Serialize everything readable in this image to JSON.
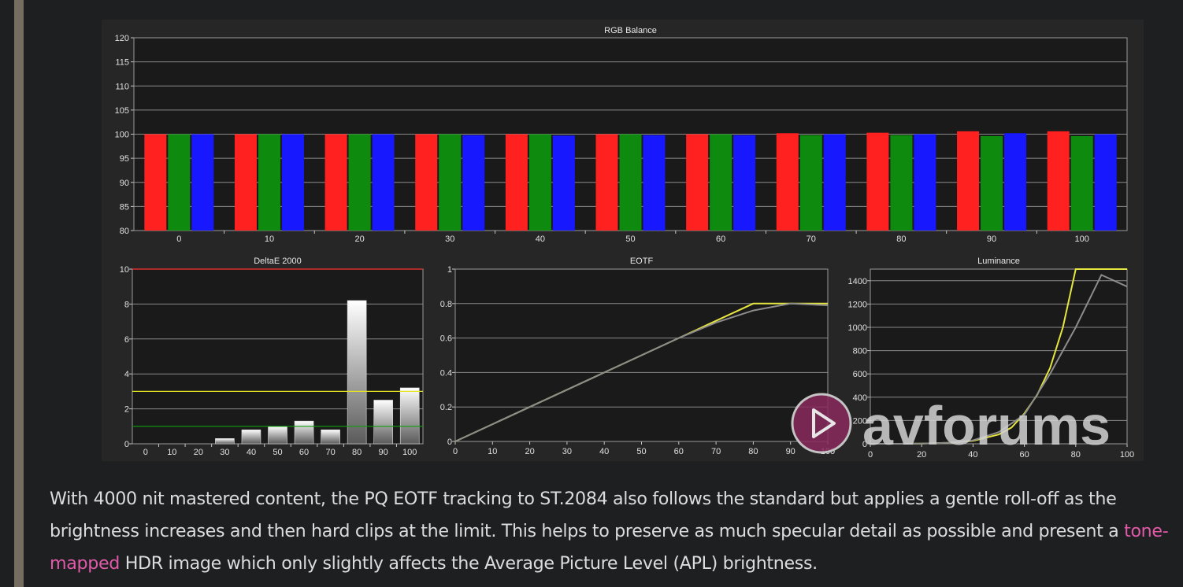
{
  "chart_data": [
    {
      "type": "bar",
      "title": "RGB Balance",
      "categories": [
        "0",
        "10",
        "20",
        "30",
        "40",
        "50",
        "60",
        "70",
        "80",
        "90",
        "100"
      ],
      "series": [
        {
          "values": [
            100,
            100,
            100,
            100,
            100,
            100,
            100,
            100.2,
            100.3,
            100.6,
            100.6
          ]
        },
        {
          "values": [
            100,
            100,
            100,
            100,
            100,
            100,
            100,
            99.8,
            99.8,
            99.6,
            99.6
          ]
        },
        {
          "values": [
            100,
            100,
            100,
            99.8,
            99.7,
            99.8,
            99.8,
            100,
            100,
            100.2,
            100
          ]
        }
      ],
      "colors": [
        "#ff2020",
        "#0e8a0e",
        "#1818ff"
      ],
      "ylim": [
        80,
        120
      ],
      "yticks": [
        80,
        85,
        90,
        95,
        100,
        105,
        110,
        115,
        120
      ],
      "grid": true
    },
    {
      "type": "bar",
      "title": "DeltaE 2000",
      "categories": [
        "0",
        "10",
        "20",
        "30",
        "40",
        "50",
        "60",
        "70",
        "80",
        "90",
        "100"
      ],
      "values": [
        0,
        0,
        0,
        0.3,
        0.8,
        1.0,
        1.3,
        0.8,
        8.2,
        2.5,
        3.2
      ],
      "ylim": [
        0,
        10
      ],
      "yticks": [
        0,
        2,
        4,
        6,
        8,
        10
      ],
      "reference_lines": [
        {
          "y": 10,
          "color": "#ff3333"
        },
        {
          "y": 3,
          "color": "#e6e620"
        },
        {
          "y": 1,
          "color": "#10a010"
        }
      ],
      "grid": true
    },
    {
      "type": "line",
      "title": "EOTF",
      "x": [
        0,
        10,
        20,
        30,
        40,
        50,
        60,
        70,
        80,
        90,
        100
      ],
      "series": [
        {
          "color": "#e6e640",
          "values": [
            0,
            0.1,
            0.2,
            0.3,
            0.4,
            0.5,
            0.6,
            0.7,
            0.8,
            0.8,
            0.8
          ]
        },
        {
          "color": "#8c8c8c",
          "values": [
            0,
            0.1,
            0.2,
            0.3,
            0.4,
            0.5,
            0.6,
            0.69,
            0.76,
            0.8,
            0.79
          ]
        }
      ],
      "xlim": [
        0,
        100
      ],
      "ylim": [
        0,
        1
      ],
      "xticks": [
        0,
        10,
        20,
        30,
        40,
        50,
        60,
        70,
        80,
        90,
        100
      ],
      "yticks": [
        {
          "v": 0,
          "label": "0"
        },
        {
          "v": 0.2,
          "label": "0.2"
        },
        {
          "v": 0.4,
          "label": "0.4"
        },
        {
          "v": 0.6,
          "label": "0.6"
        },
        {
          "v": 0.8,
          "label": "0.8"
        },
        {
          "v": 1,
          "label": "1"
        }
      ],
      "grid": true
    },
    {
      "type": "line",
      "title": "Luminance",
      "x_yellow": [
        0,
        10,
        20,
        30,
        40,
        50,
        55,
        60,
        65,
        70,
        75,
        80,
        85,
        90,
        100
      ],
      "x_gray": [
        0,
        10,
        20,
        30,
        40,
        50,
        60,
        70,
        80,
        90,
        100
      ],
      "series": [
        {
          "color": "#e6e640",
          "values": [
            0,
            0,
            2,
            8,
            25,
            80,
            140,
            260,
            420,
            650,
            1000,
            1500,
            1500,
            1500,
            1500
          ]
        },
        {
          "color": "#8c8c8c",
          "values": [
            0,
            0,
            2,
            8,
            30,
            100,
            250,
            600,
            1000,
            1450,
            1350
          ]
        }
      ],
      "xlim": [
        0,
        100
      ],
      "ylim": [
        0,
        1500
      ],
      "xticks": [
        0,
        20,
        40,
        60,
        80,
        100
      ],
      "yticks": [
        0,
        200,
        400,
        600,
        800,
        1000,
        1200,
        1400
      ],
      "grid": true
    }
  ],
  "article": {
    "part1": "With 4000 nit mastered content, the PQ EOTF tracking to ST.2084 also follows the standard but applies a gentle roll-off as the brightness increases and then hard clips at the limit. This helps to preserve as much specular detail as possible and present a ",
    "link": "tone-mapped",
    "part2": " HDR image which only slightly affects the Average Picture Level (APL) brightness."
  },
  "watermark": {
    "text": "avforums",
    "logo_color": "#8a2a5e"
  }
}
